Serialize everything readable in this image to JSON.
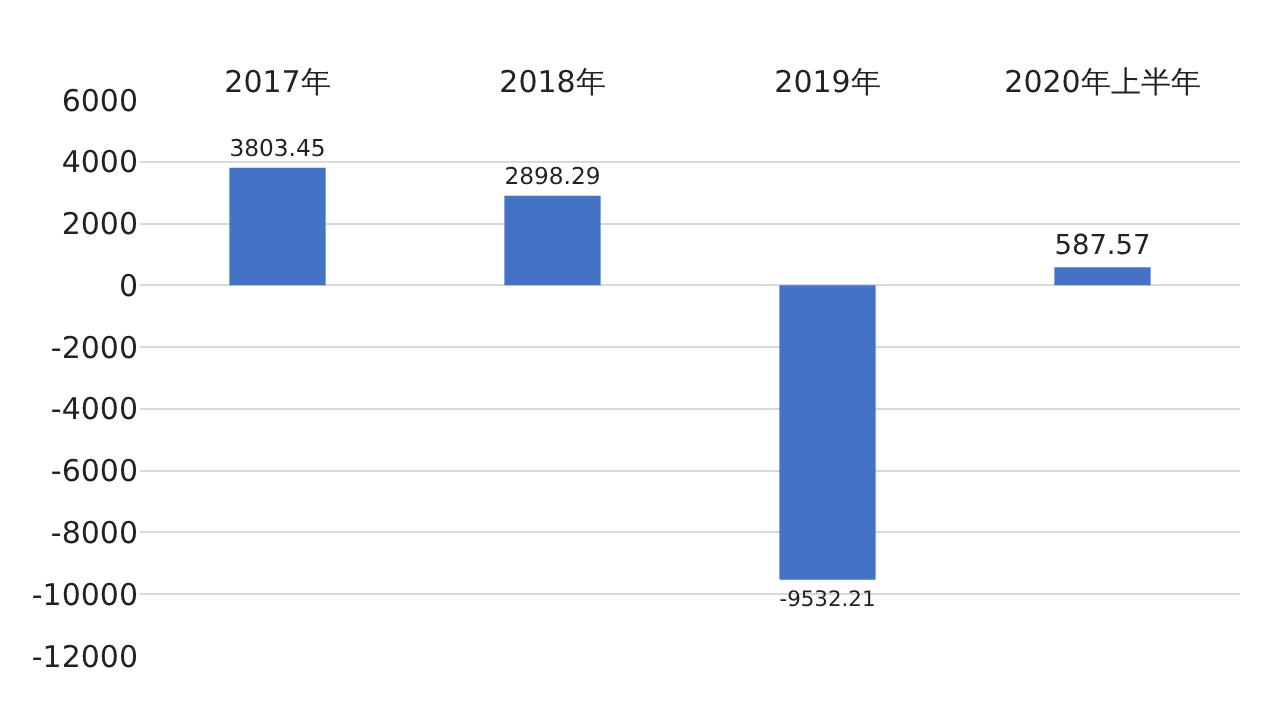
{
  "chart_data": {
    "type": "bar",
    "categories": [
      "2017年",
      "2018年",
      "2019年",
      "2020年上半年"
    ],
    "values": [
      3803.45,
      2898.29,
      -9532.21,
      587.57
    ],
    "color": "#4472c4",
    "ylim": [
      -12000,
      6000
    ],
    "yticks": [
      -12000,
      -10000,
      -8000,
      -6000,
      -4000,
      -2000,
      0,
      2000,
      4000,
      6000
    ],
    "grid": "y",
    "data_labels": true
  }
}
